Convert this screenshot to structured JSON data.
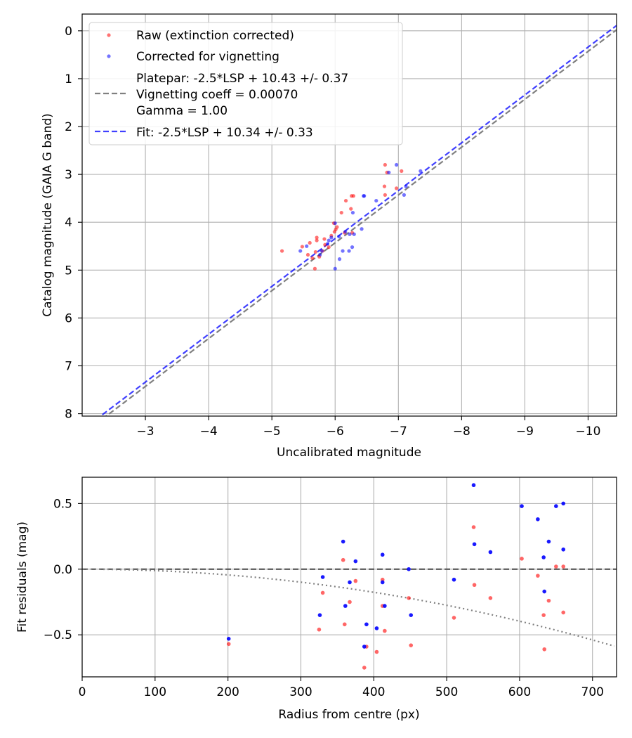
{
  "chart_data": [
    {
      "type": "scatter",
      "name": "magnitude-calibration",
      "xlabel": "Uncalibrated magnitude",
      "ylabel": "Catalog magnitude (GAIA G band)",
      "xlim": [
        -2.0,
        -10.45
      ],
      "ylim": [
        8.05,
        -0.35
      ],
      "x_ticks": [
        -3,
        -4,
        -5,
        -6,
        -7,
        -8,
        -9,
        -10
      ],
      "x_tick_labels": [
        "−3",
        "−4",
        "−5",
        "−6",
        "−7",
        "−8",
        "−9",
        "−10"
      ],
      "y_ticks": [
        0,
        1,
        2,
        3,
        4,
        5,
        6,
        7,
        8
      ],
      "y_tick_labels": [
        "0",
        "1",
        "2",
        "3",
        "4",
        "5",
        "6",
        "7",
        "8"
      ],
      "grid": true,
      "legend": {
        "position": "upper-left",
        "entries": [
          {
            "label": "Raw (extinction corrected)",
            "marker": "dot",
            "color": "#ff0000"
          },
          {
            "label": "Corrected for vignetting",
            "marker": "dot",
            "color": "#0000ff"
          },
          {
            "label_lines": [
              "Platepar: -2.5*LSP + 10.43 +/- 0.37",
              "Vignetting coeff = 0.00070",
              "Gamma = 1.00"
            ],
            "marker": "dashed-line",
            "color": "#808080"
          },
          {
            "label": "Fit: -2.5*LSP + 10.34 +/- 0.33",
            "marker": "dashed-line",
            "color": "#0000ff"
          }
        ]
      },
      "series": [
        {
          "name": "Raw (extinction corrected)",
          "color": "#ff0000",
          "points": [
            [
              -6.79,
              2.8
            ],
            [
              -6.82,
              2.96
            ],
            [
              -7.05,
              2.93
            ],
            [
              -6.78,
              3.25
            ],
            [
              -6.97,
              3.29
            ],
            [
              -6.79,
              3.43
            ],
            [
              -6.26,
              3.45
            ],
            [
              -6.29,
              3.45
            ],
            [
              -6.17,
              3.55
            ],
            [
              -6.1,
              3.8
            ],
            [
              -6.25,
              3.72
            ],
            [
              -5.98,
              4.02
            ],
            [
              -6.03,
              4.1
            ],
            [
              -6.01,
              4.15
            ],
            [
              -5.99,
              4.2
            ],
            [
              -5.94,
              4.28
            ],
            [
              -5.71,
              4.32
            ],
            [
              -5.71,
              4.38
            ],
            [
              -5.83,
              4.35
            ],
            [
              -5.84,
              4.47
            ],
            [
              -6.15,
              4.22
            ],
            [
              -6.27,
              4.22
            ],
            [
              -5.9,
              4.52
            ],
            [
              -5.6,
              4.43
            ],
            [
              -5.48,
              4.51
            ],
            [
              -5.8,
              4.6
            ],
            [
              -5.69,
              4.62
            ],
            [
              -5.57,
              4.68
            ],
            [
              -5.64,
              4.75
            ],
            [
              -5.75,
              4.72
            ],
            [
              -5.68,
              4.97
            ],
            [
              -5.16,
              4.6
            ]
          ]
        },
        {
          "name": "Corrected for vignetting",
          "color": "#0000ff",
          "points": [
            [
              -6.97,
              2.8
            ],
            [
              -6.85,
              2.96
            ],
            [
              -7.35,
              2.93
            ],
            [
              -7.12,
              3.25
            ],
            [
              -7.09,
              3.43
            ],
            [
              -6.45,
              3.45
            ],
            [
              -6.46,
              3.45
            ],
            [
              -6.65,
              3.55
            ],
            [
              -6.28,
              3.8
            ],
            [
              -6.0,
              4.02
            ],
            [
              -6.42,
              4.14
            ],
            [
              -6.16,
              4.2
            ],
            [
              -6.23,
              4.25
            ],
            [
              -6.3,
              4.25
            ],
            [
              -6.06,
              4.3
            ],
            [
              -5.9,
              4.38
            ],
            [
              -5.94,
              4.32
            ],
            [
              -5.88,
              4.45
            ],
            [
              -5.79,
              4.6
            ],
            [
              -6.12,
              4.6
            ],
            [
              -6.27,
              4.52
            ],
            [
              -6.22,
              4.6
            ],
            [
              -5.55,
              4.5
            ],
            [
              -5.45,
              4.6
            ],
            [
              -5.76,
              4.68
            ],
            [
              -6.07,
              4.77
            ],
            [
              -6.0,
              4.97
            ]
          ]
        }
      ],
      "lines": [
        {
          "name": "Platepar",
          "color": "#808080",
          "style": "dashed",
          "slope": 1.0,
          "intercept": 10.43
        },
        {
          "name": "Fit",
          "color": "#0000ff",
          "style": "dashed",
          "slope": 1.0,
          "intercept": 10.34
        }
      ]
    },
    {
      "type": "scatter",
      "name": "fit-residuals",
      "xlabel": "Radius from centre (px)",
      "ylabel": "Fit residuals (mag)",
      "xlim": [
        0,
        733
      ],
      "ylim": [
        -0.82,
        0.7
      ],
      "x_ticks": [
        0,
        100,
        200,
        300,
        400,
        500,
        600,
        700
      ],
      "x_tick_labels": [
        "0",
        "100",
        "200",
        "300",
        "400",
        "500",
        "600",
        "700"
      ],
      "y_ticks": [
        0.5,
        0.0,
        -0.5
      ],
      "y_tick_labels": [
        "0.5",
        "0.0",
        "−0.5"
      ],
      "grid": true,
      "series": [
        {
          "name": "Raw",
          "color": "#ff0000",
          "points": [
            [
              201,
              -0.57
            ],
            [
              325,
              -0.46
            ],
            [
              330,
              -0.18
            ],
            [
              358,
              0.07
            ],
            [
              360,
              -0.42
            ],
            [
              367,
              -0.25
            ],
            [
              375,
              -0.09
            ],
            [
              387,
              -0.75
            ],
            [
              390,
              -0.59
            ],
            [
              404,
              -0.63
            ],
            [
              412,
              -0.08
            ],
            [
              412,
              -0.28
            ],
            [
              415,
              -0.47
            ],
            [
              448,
              -0.22
            ],
            [
              451,
              -0.58
            ],
            [
              510,
              -0.37
            ],
            [
              537,
              0.32
            ],
            [
              538,
              -0.12
            ],
            [
              560,
              -0.22
            ],
            [
              603,
              0.08
            ],
            [
              625,
              -0.05
            ],
            [
              633,
              -0.35
            ],
            [
              634,
              -0.61
            ],
            [
              640,
              -0.24
            ],
            [
              650,
              0.02
            ],
            [
              660,
              0.02
            ],
            [
              660,
              -0.33
            ]
          ]
        },
        {
          "name": "Corrected",
          "color": "#0000ff",
          "points": [
            [
              201,
              -0.53
            ],
            [
              326,
              -0.35
            ],
            [
              330,
              -0.06
            ],
            [
              358,
              0.21
            ],
            [
              361,
              -0.28
            ],
            [
              367,
              -0.1
            ],
            [
              375,
              0.06
            ],
            [
              387,
              -0.59
            ],
            [
              390,
              -0.42
            ],
            [
              404,
              -0.45
            ],
            [
              412,
              0.11
            ],
            [
              412,
              -0.1
            ],
            [
              415,
              -0.28
            ],
            [
              448,
              0.0
            ],
            [
              451,
              -0.35
            ],
            [
              510,
              -0.08
            ],
            [
              537,
              0.64
            ],
            [
              538,
              0.19
            ],
            [
              560,
              0.13
            ],
            [
              603,
              0.48
            ],
            [
              625,
              0.38
            ],
            [
              633,
              0.09
            ],
            [
              634,
              -0.17
            ],
            [
              640,
              0.21
            ],
            [
              650,
              0.48
            ],
            [
              660,
              0.5
            ],
            [
              660,
              0.15
            ]
          ]
        }
      ],
      "zero_line": {
        "y": 0,
        "color": "#555555",
        "style": "dashed"
      },
      "vignetting_curve": {
        "color": "#808080",
        "style": "dotted",
        "coeff": 0.0007,
        "gamma": 1.0
      }
    }
  ]
}
